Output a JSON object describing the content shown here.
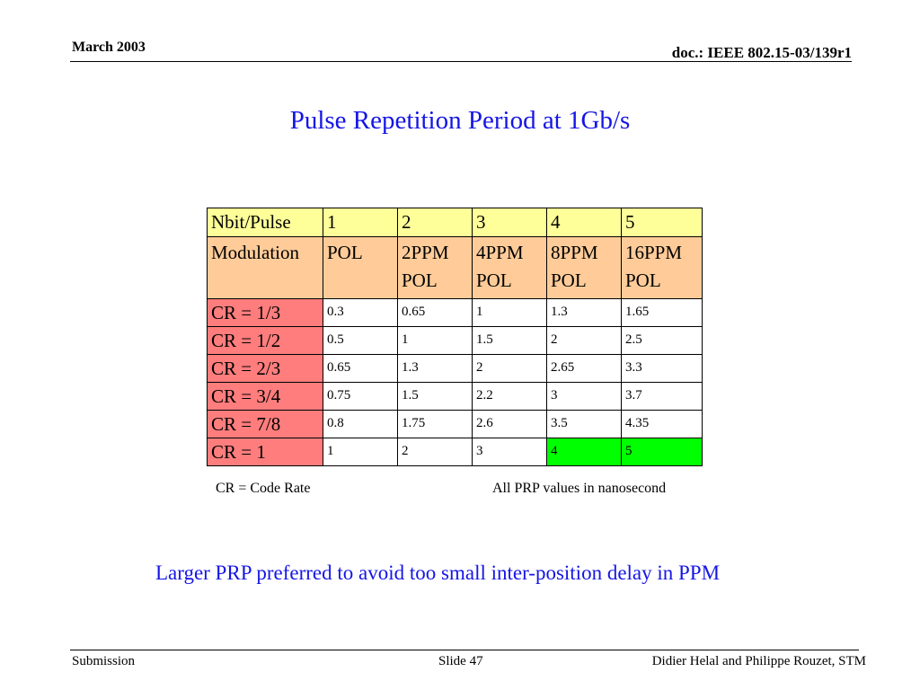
{
  "header": {
    "date": "March 2003",
    "doc": "doc.: IEEE 802.15-03/139r1"
  },
  "title": "Pulse Repetition Period at 1Gb/s",
  "table": {
    "nbit_label": "Nbit/Pulse",
    "nbit": [
      "1",
      "2",
      "3",
      "4",
      "5"
    ],
    "mod_label": "Modulation",
    "modulation": [
      "POL",
      "2PPM POL",
      "4PPM POL",
      "8PPM POL",
      "16PPM POL"
    ],
    "rows": [
      {
        "label": "CR = 1/3",
        "values": [
          "0.3",
          "0.65",
          "1",
          "1.3",
          "1.65"
        ]
      },
      {
        "label": "CR = 1/2",
        "values": [
          "0.5",
          "1",
          "1.5",
          "2",
          "2.5"
        ]
      },
      {
        "label": "CR = 2/3",
        "values": [
          "0.65",
          "1.3",
          "2",
          "2.65",
          "3.3"
        ]
      },
      {
        "label": "CR = 3/4",
        "values": [
          "0.75",
          "1.5",
          "2.2",
          "3",
          "3.7"
        ]
      },
      {
        "label": "CR = 7/8",
        "values": [
          "0.8",
          "1.75",
          "2.6",
          "3.5",
          "4.35"
        ]
      },
      {
        "label": "CR = 1",
        "values": [
          "1",
          "2",
          "3",
          "4",
          "5"
        ]
      }
    ],
    "colors": {
      "header": "#ffff99",
      "modulation": "#ffcc99",
      "row_label": "#ff7d7d",
      "highlight": "#00ff00"
    }
  },
  "notes": {
    "left": "CR = Code Rate",
    "right": "All PRP values in nanosecond"
  },
  "message": "Larger PRP preferred to avoid too small inter-position delay in PPM",
  "footer": {
    "left": "Submission",
    "slide": "Slide 47",
    "authors": "Didier Helal and Philippe Rouzet, STM"
  }
}
